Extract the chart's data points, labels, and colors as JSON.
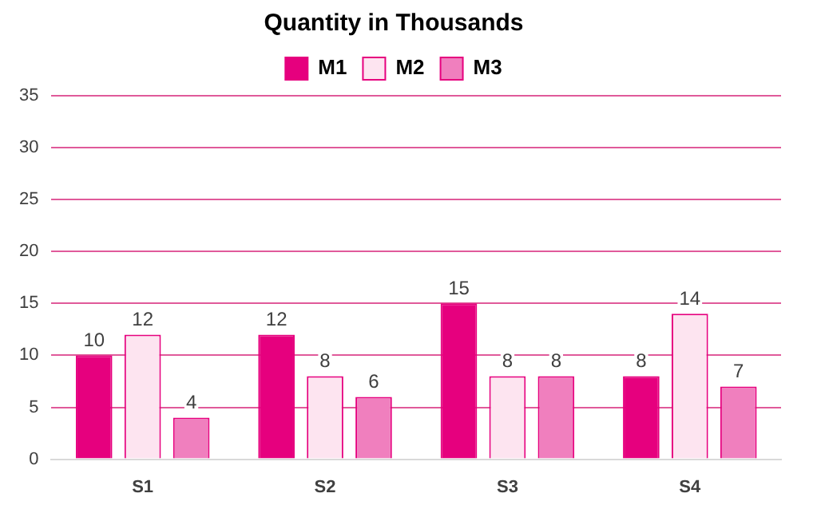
{
  "chart_data": {
    "type": "bar",
    "title": "Quantity in Thousands",
    "categories": [
      "S1",
      "S2",
      "S3",
      "S4"
    ],
    "series": [
      {
        "name": "M1",
        "color": "#e6007e",
        "values": [
          10,
          12,
          15,
          8
        ]
      },
      {
        "name": "M2",
        "color": "#fde4f0",
        "values": [
          12,
          8,
          8,
          14
        ]
      },
      {
        "name": "M3",
        "color": "#f07fbe",
        "values": [
          4,
          6,
          8,
          7
        ]
      }
    ],
    "ylim": [
      0,
      35
    ],
    "yticks": [
      0,
      5,
      10,
      15,
      20,
      25,
      30,
      35
    ],
    "grid": "y",
    "legend": "top",
    "data_labels": true
  }
}
